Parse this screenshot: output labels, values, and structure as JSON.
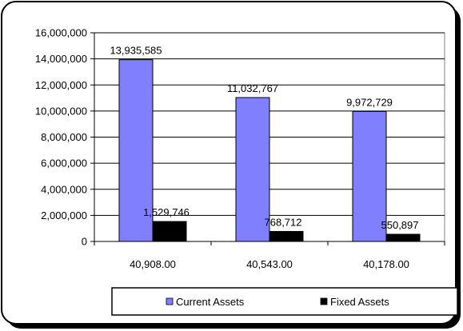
{
  "chart_data": {
    "type": "bar",
    "categories": [
      "40,908.00",
      "40,543.00",
      "40,178.00"
    ],
    "series": [
      {
        "name": "Current Assets",
        "values": [
          13935585,
          11032767,
          9972729
        ],
        "color": "#8080ff"
      },
      {
        "name": "Fixed Assets",
        "values": [
          1529746,
          768712,
          550897
        ],
        "color": "#000000"
      }
    ],
    "data_labels": [
      [
        "13,935,585",
        "11,032,767",
        "9,972,729"
      ],
      [
        "1,529,746",
        "768,712",
        "550,897"
      ]
    ],
    "y_ticks": [
      "0",
      "2,000,000",
      "4,000,000",
      "6,000,000",
      "8,000,000",
      "10,000,000",
      "12,000,000",
      "14,000,000",
      "16,000,000"
    ],
    "ylim": [
      0,
      16000000
    ],
    "grid": true,
    "legend_position": "bottom-right"
  }
}
